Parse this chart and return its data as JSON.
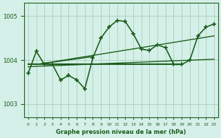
{
  "title": "Graphe pression niveau de la mer (hPa)",
  "background_color": "#d4f0e8",
  "line_color": "#1a5c1a",
  "grid_color": "#a0c8b0",
  "ylim": [
    1002.7,
    1005.3
  ],
  "yticks": [
    1003,
    1004,
    1005
  ],
  "xlim": [
    -0.5,
    23.5
  ],
  "xticks": [
    0,
    1,
    2,
    3,
    4,
    5,
    6,
    7,
    8,
    9,
    10,
    11,
    12,
    13,
    14,
    15,
    16,
    17,
    18,
    19,
    20,
    21,
    22,
    23
  ],
  "hours": [
    0,
    1,
    2,
    3,
    4,
    5,
    6,
    7,
    8,
    9,
    10,
    11,
    12,
    13,
    14,
    15,
    16,
    17,
    18,
    19,
    20,
    21,
    22,
    23
  ],
  "pressure": [
    1003.7,
    1004.2,
    1003.9,
    1003.9,
    1003.55,
    1003.65,
    1003.55,
    1003.35,
    1004.05,
    1004.5,
    1004.75,
    1004.9,
    1004.88,
    1004.6,
    1004.25,
    1004.22,
    1004.35,
    1004.28,
    1003.9,
    1003.9,
    1004.0,
    1004.55,
    1004.75,
    1004.82
  ],
  "trend_lines": [
    {
      "x": [
        0,
        19
      ],
      "y": [
        1003.9,
        1003.9
      ],
      "lw": 1.5
    },
    {
      "x": [
        0,
        23
      ],
      "y": [
        1003.85,
        1004.02
      ],
      "lw": 1.0
    },
    {
      "x": [
        1,
        23
      ],
      "y": [
        1003.9,
        1004.55
      ],
      "lw": 1.0
    },
    {
      "x": [
        1,
        8
      ],
      "y": [
        1003.9,
        1004.08
      ],
      "lw": 1.0
    }
  ]
}
